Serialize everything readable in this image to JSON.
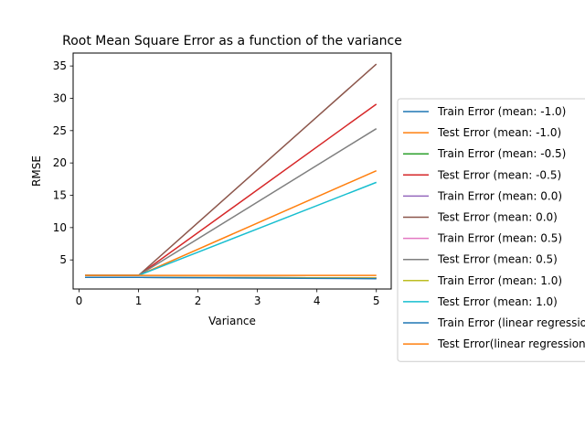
{
  "chart_data": {
    "type": "line",
    "title": "Root Mean Square Error as a function of the variance",
    "xlabel": "Variance",
    "ylabel": "RMSE",
    "xlim": [
      -0.1,
      5.25
    ],
    "ylim": [
      0.5,
      37.0
    ],
    "xticks": [
      0,
      1,
      2,
      3,
      4,
      5
    ],
    "yticks": [
      5,
      10,
      15,
      20,
      25,
      30,
      35
    ],
    "grid": false,
    "legend_position": "right, outside plot area",
    "x": [
      0.1,
      1,
      5
    ],
    "series": [
      {
        "name": "Train Error (mean: -1.0)",
        "color": "#1f77b4",
        "values": [
          2.3,
          2.3,
          2.2
        ]
      },
      {
        "name": "Test Error (mean: -1.0)",
        "color": "#ff7f0e",
        "values": [
          2.6,
          2.6,
          18.8
        ]
      },
      {
        "name": "Train Error (mean: -0.5)",
        "color": "#2ca02c",
        "values": [
          2.3,
          2.3,
          2.2
        ]
      },
      {
        "name": "Test Error (mean: -0.5)",
        "color": "#d62728",
        "values": [
          2.6,
          2.6,
          29.1
        ]
      },
      {
        "name": "Train Error (mean: 0.0)",
        "color": "#9467bd",
        "values": [
          2.3,
          2.3,
          2.2
        ]
      },
      {
        "name": "Test Error (mean: 0.0)",
        "color": "#8c564b",
        "values": [
          2.6,
          2.6,
          35.3
        ]
      },
      {
        "name": "Train Error (mean: 0.5)",
        "color": "#e377c2",
        "values": [
          2.3,
          2.3,
          2.2
        ]
      },
      {
        "name": "Test Error (mean: 0.5)",
        "color": "#7f7f7f",
        "values": [
          2.6,
          2.6,
          25.3
        ]
      },
      {
        "name": "Train Error (mean: 1.0)",
        "color": "#bcbd22",
        "values": [
          2.3,
          2.3,
          2.2
        ]
      },
      {
        "name": "Test Error (mean: 1.0)",
        "color": "#17becf",
        "values": [
          2.6,
          2.6,
          17.0
        ]
      },
      {
        "name": "Train Error (linear regression)",
        "color": "#1f77b4",
        "values": [
          2.3,
          2.3,
          2.1
        ]
      },
      {
        "name": "Test Error(linear regression)",
        "color": "#ff7f0e",
        "values": [
          2.6,
          2.6,
          2.6
        ]
      }
    ]
  }
}
